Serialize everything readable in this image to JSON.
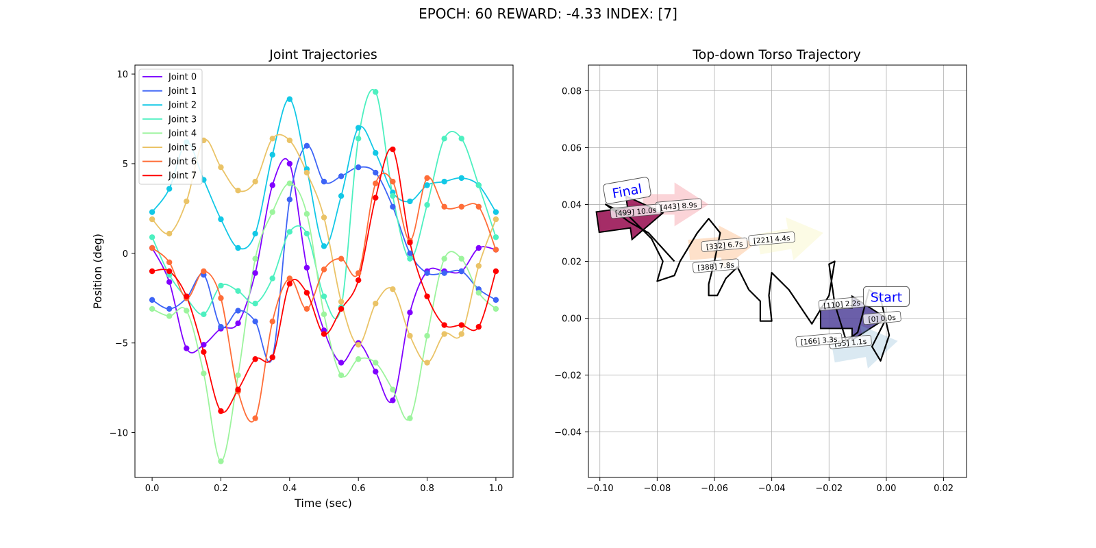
{
  "figure": {
    "suptitle": "EPOCH:  60 REWARD:  -4.33 INDEX: [7]"
  },
  "chart_data": [
    {
      "type": "line",
      "title": "Joint Trajectories",
      "xlabel": "Time (sec)",
      "ylabel": "Position (deg)",
      "xlim": [
        -0.05,
        1.05
      ],
      "ylim": [
        -12.5,
        10.5
      ],
      "xticks": [
        "0.0",
        "0.2",
        "0.4",
        "0.6",
        "0.8",
        "1.0"
      ],
      "yticks": [
        "−10",
        "−5",
        "0",
        "5",
        "10"
      ],
      "grid": false,
      "legend_position": "top-left",
      "x": [
        0.0,
        0.05,
        0.1,
        0.15,
        0.2,
        0.25,
        0.3,
        0.35,
        0.4,
        0.45,
        0.5,
        0.55,
        0.6,
        0.65,
        0.7,
        0.75,
        0.8,
        0.85,
        0.9,
        0.95,
        1.0
      ],
      "series": [
        {
          "name": "Joint 0",
          "color": "#8000ff",
          "values": [
            0.3,
            -1.6,
            -5.3,
            -5.1,
            -4.2,
            -3.9,
            -1.1,
            3.8,
            5.0,
            -0.8,
            -4.3,
            -6.1,
            -5.0,
            -6.6,
            -8.2,
            -3.3,
            -1.0,
            -1.0,
            -1.0,
            0.3,
            0.2
          ]
        },
        {
          "name": "Joint 1",
          "color": "#3d64f6",
          "values": [
            -2.6,
            -3.1,
            -2.5,
            -1.2,
            -4.1,
            -3.2,
            -3.8,
            -5.8,
            3.0,
            6.0,
            4.0,
            4.3,
            4.8,
            4.5,
            2.6,
            0.0,
            -1.1,
            -1.1,
            -1.0,
            -2.0,
            -2.6
          ]
        },
        {
          "name": "Joint 2",
          "color": "#12c8e6",
          "values": [
            2.3,
            3.6,
            6.2,
            4.1,
            1.9,
            0.3,
            1.1,
            5.5,
            8.6,
            4.7,
            0.4,
            3.2,
            7.0,
            5.6,
            3.4,
            2.9,
            3.8,
            4.0,
            4.2,
            3.8,
            2.3
          ]
        },
        {
          "name": "Joint 3",
          "color": "#4df0c0",
          "values": [
            0.9,
            -1.2,
            -2.5,
            -3.4,
            -1.8,
            -2.1,
            -2.8,
            -1.4,
            1.2,
            1.1,
            -2.4,
            -3.0,
            6.4,
            9.0,
            3.2,
            -0.3,
            2.7,
            6.4,
            6.4,
            3.8,
            0.9
          ]
        },
        {
          "name": "Joint 4",
          "color": "#9cf49d",
          "values": [
            -3.1,
            -3.5,
            -3.2,
            -6.7,
            -11.6,
            -6.8,
            -0.3,
            2.3,
            3.9,
            2.2,
            -3.4,
            -6.8,
            -5.9,
            -6.1,
            -7.6,
            -9.2,
            -4.6,
            -0.3,
            -0.3,
            -2.2,
            -3.1
          ]
        },
        {
          "name": "Joint 5",
          "color": "#eac367",
          "values": [
            1.9,
            1.1,
            2.9,
            6.3,
            4.8,
            3.5,
            4.0,
            6.4,
            6.3,
            4.5,
            2.0,
            -2.7,
            -5.1,
            -2.8,
            -2.0,
            -4.6,
            -6.1,
            -4.5,
            -4.5,
            -0.7,
            1.9
          ]
        },
        {
          "name": "Joint 6",
          "color": "#ff6d38",
          "values": [
            0.3,
            -0.5,
            -2.5,
            -1.0,
            -2.5,
            -7.7,
            -9.2,
            -3.8,
            -1.4,
            -3.1,
            -0.9,
            -0.3,
            -1.1,
            3.9,
            4.0,
            0.7,
            4.2,
            2.6,
            2.6,
            2.6,
            0.2
          ]
        },
        {
          "name": "Joint 7",
          "color": "#ff0000",
          "values": [
            -1.0,
            -1.0,
            -2.4,
            -5.5,
            -8.8,
            -7.6,
            -5.9,
            -5.8,
            -1.7,
            -2.2,
            -4.5,
            -3.1,
            -1.5,
            3.1,
            5.8,
            0.6,
            -2.4,
            -4.0,
            -4.0,
            -4.1,
            -1.0
          ]
        }
      ]
    },
    {
      "type": "scatter",
      "title": "Top-down Torso Trajectory",
      "xlim": [
        -0.104,
        0.028
      ],
      "ylim": [
        -0.056,
        0.089
      ],
      "xticks": [
        "−0.10",
        "−0.08",
        "−0.06",
        "−0.04",
        "−0.02",
        "0.00",
        "0.02"
      ],
      "yticks": [
        "−0.04",
        "−0.02",
        "0.00",
        "0.02",
        "0.04",
        "0.06",
        "0.08"
      ],
      "grid": true,
      "path_color": "#000000",
      "path": [
        [
          0.0,
          0.0
        ],
        [
          -0.005,
          -0.01
        ],
        [
          -0.002,
          -0.015
        ],
        [
          0.001,
          -0.006
        ],
        [
          -0.002,
          0.007
        ],
        [
          -0.006,
          0.01
        ],
        [
          -0.01,
          -0.005
        ],
        [
          -0.014,
          -0.008
        ],
        [
          -0.018,
          0.005
        ],
        [
          -0.02,
          0.019
        ],
        [
          -0.018,
          0.02
        ],
        [
          -0.02,
          0.008
        ],
        [
          -0.026,
          -0.002
        ],
        [
          -0.034,
          0.01
        ],
        [
          -0.04,
          0.016
        ],
        [
          -0.041,
          0.008
        ],
        [
          -0.04,
          -0.001
        ],
        [
          -0.044,
          -0.001
        ],
        [
          -0.044,
          0.006
        ],
        [
          -0.048,
          0.01
        ],
        [
          -0.052,
          0.018
        ],
        [
          -0.056,
          0.014
        ],
        [
          -0.059,
          0.008
        ],
        [
          -0.062,
          0.008
        ],
        [
          -0.062,
          0.012
        ],
        [
          -0.06,
          0.02
        ],
        [
          -0.058,
          0.03
        ],
        [
          -0.062,
          0.035
        ],
        [
          -0.066,
          0.03
        ],
        [
          -0.072,
          0.02
        ],
        [
          -0.074,
          0.015
        ],
        [
          -0.08,
          0.013
        ],
        [
          -0.078,
          0.02
        ],
        [
          -0.082,
          0.028
        ],
        [
          -0.09,
          0.036
        ],
        [
          -0.098,
          0.04
        ],
        [
          -0.09,
          0.034
        ],
        [
          -0.083,
          0.03
        ],
        [
          -0.074,
          0.02
        ]
      ],
      "arrows": [
        {
          "at": [
            0.0,
            0.0
          ],
          "angle_deg": 0,
          "color": "#5b4ea0",
          "opacity": 0.9,
          "outlined": true
        },
        {
          "at": [
            0.004,
            -0.008
          ],
          "angle_deg": 10,
          "color": "#7bb0d0",
          "opacity": 0.28,
          "outlined": false
        },
        {
          "at": [
            -0.022,
            0.03
          ],
          "angle_deg": 10,
          "color": "#f3f0a0",
          "opacity": 0.28,
          "outlined": false
        },
        {
          "at": [
            -0.046,
            0.026
          ],
          "angle_deg": 5,
          "color": "#fba867",
          "opacity": 0.35,
          "outlined": false
        },
        {
          "at": [
            -0.062,
            0.04
          ],
          "angle_deg": 0,
          "color": "#f6a0a8",
          "opacity": 0.45,
          "outlined": false
        },
        {
          "at": [
            -0.078,
            0.037
          ],
          "angle_deg": 8,
          "color": "#9b1656",
          "opacity": 0.9,
          "outlined": true
        }
      ],
      "point_labels": [
        {
          "text": "[0] 0.0s",
          "at": [
            -0.0015,
            0.0
          ]
        },
        {
          "text": "[55] 1.1s",
          "at": [
            -0.0125,
            -0.0085
          ]
        },
        {
          "text": "[110] 2.2s",
          "at": [
            -0.0155,
            0.005
          ]
        },
        {
          "text": "[166] 3.3s",
          "at": [
            -0.0235,
            -0.0078
          ]
        },
        {
          "text": "[221] 4.4s",
          "at": [
            -0.04,
            0.0278
          ]
        },
        {
          "text": "[332] 6.7s",
          "at": [
            -0.0565,
            0.0257
          ]
        },
        {
          "text": "[388] 7.8s",
          "at": [
            -0.0595,
            0.0183
          ]
        },
        {
          "text": "[443] 8.9s",
          "at": [
            -0.0725,
            0.0395
          ]
        },
        {
          "text": "[499] 10.0s",
          "at": [
            -0.0875,
            0.0375
          ]
        }
      ],
      "annotations": [
        {
          "text": "Start",
          "at": [
            0.0,
            0.0075
          ]
        },
        {
          "text": "Final",
          "at": [
            -0.0905,
            0.0448
          ]
        }
      ]
    }
  ]
}
